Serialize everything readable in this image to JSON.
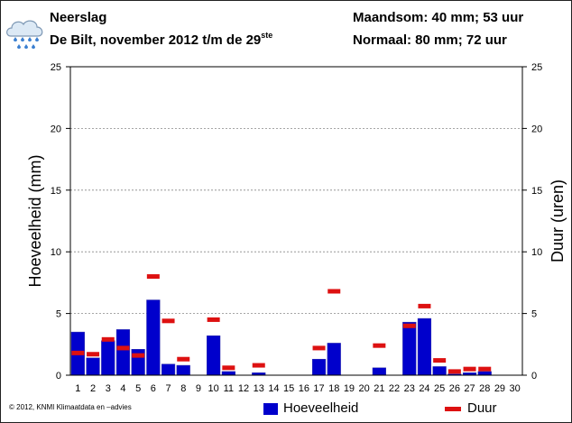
{
  "header": {
    "title": "Neerslag",
    "subtitle_main": "De Bilt, november 2012 t/m de 29",
    "subtitle_sup": "ste",
    "maandsom": "Maandsom: 40 mm; 53 uur",
    "normaal": "Normaal: 80 mm; 72 uur"
  },
  "footer": {
    "copyright": "© 2012, KNMI Klimaatdata en –advies"
  },
  "icon": "rain-cloud-icon",
  "colors": {
    "bar": "#0000cc",
    "bar_edge": "#3333aa",
    "duration": "#dd1111",
    "grid": "#888888",
    "cloud": "#d8e8f4"
  },
  "chart_data": {
    "type": "bar",
    "x": [
      1,
      2,
      3,
      4,
      5,
      6,
      7,
      8,
      9,
      10,
      11,
      12,
      13,
      14,
      15,
      16,
      17,
      18,
      19,
      20,
      21,
      22,
      23,
      24,
      25,
      26,
      27,
      28,
      29,
      30
    ],
    "series": [
      {
        "name": "Hoeveelheid",
        "axis": "left",
        "values": [
          3.5,
          1.4,
          2.8,
          3.7,
          2.1,
          6.1,
          0.9,
          0.8,
          0,
          3.2,
          0.3,
          0,
          0.2,
          0,
          0,
          0,
          1.3,
          2.6,
          0,
          0,
          0.6,
          0,
          4.3,
          4.6,
          0.7,
          0.1,
          0.2,
          0.3,
          null,
          null
        ]
      },
      {
        "name": "Duur",
        "axis": "right",
        "values": [
          1.8,
          1.7,
          2.9,
          2.2,
          1.6,
          8.0,
          4.4,
          1.3,
          0,
          4.5,
          0.6,
          0,
          0.8,
          0,
          0,
          0,
          2.2,
          6.8,
          0,
          0,
          2.4,
          0,
          4.0,
          5.6,
          1.2,
          0.3,
          0.5,
          0.5,
          null,
          null
        ]
      }
    ],
    "ylabel": "Hoeveelheid (mm)",
    "y2label": "Duur (uren)",
    "ylim": [
      0,
      25
    ],
    "y2lim": [
      0,
      25
    ],
    "yticks": [
      0,
      5,
      10,
      15,
      20,
      25
    ],
    "grid": "dashed-horizontal",
    "legend_position": "bottom-right"
  }
}
